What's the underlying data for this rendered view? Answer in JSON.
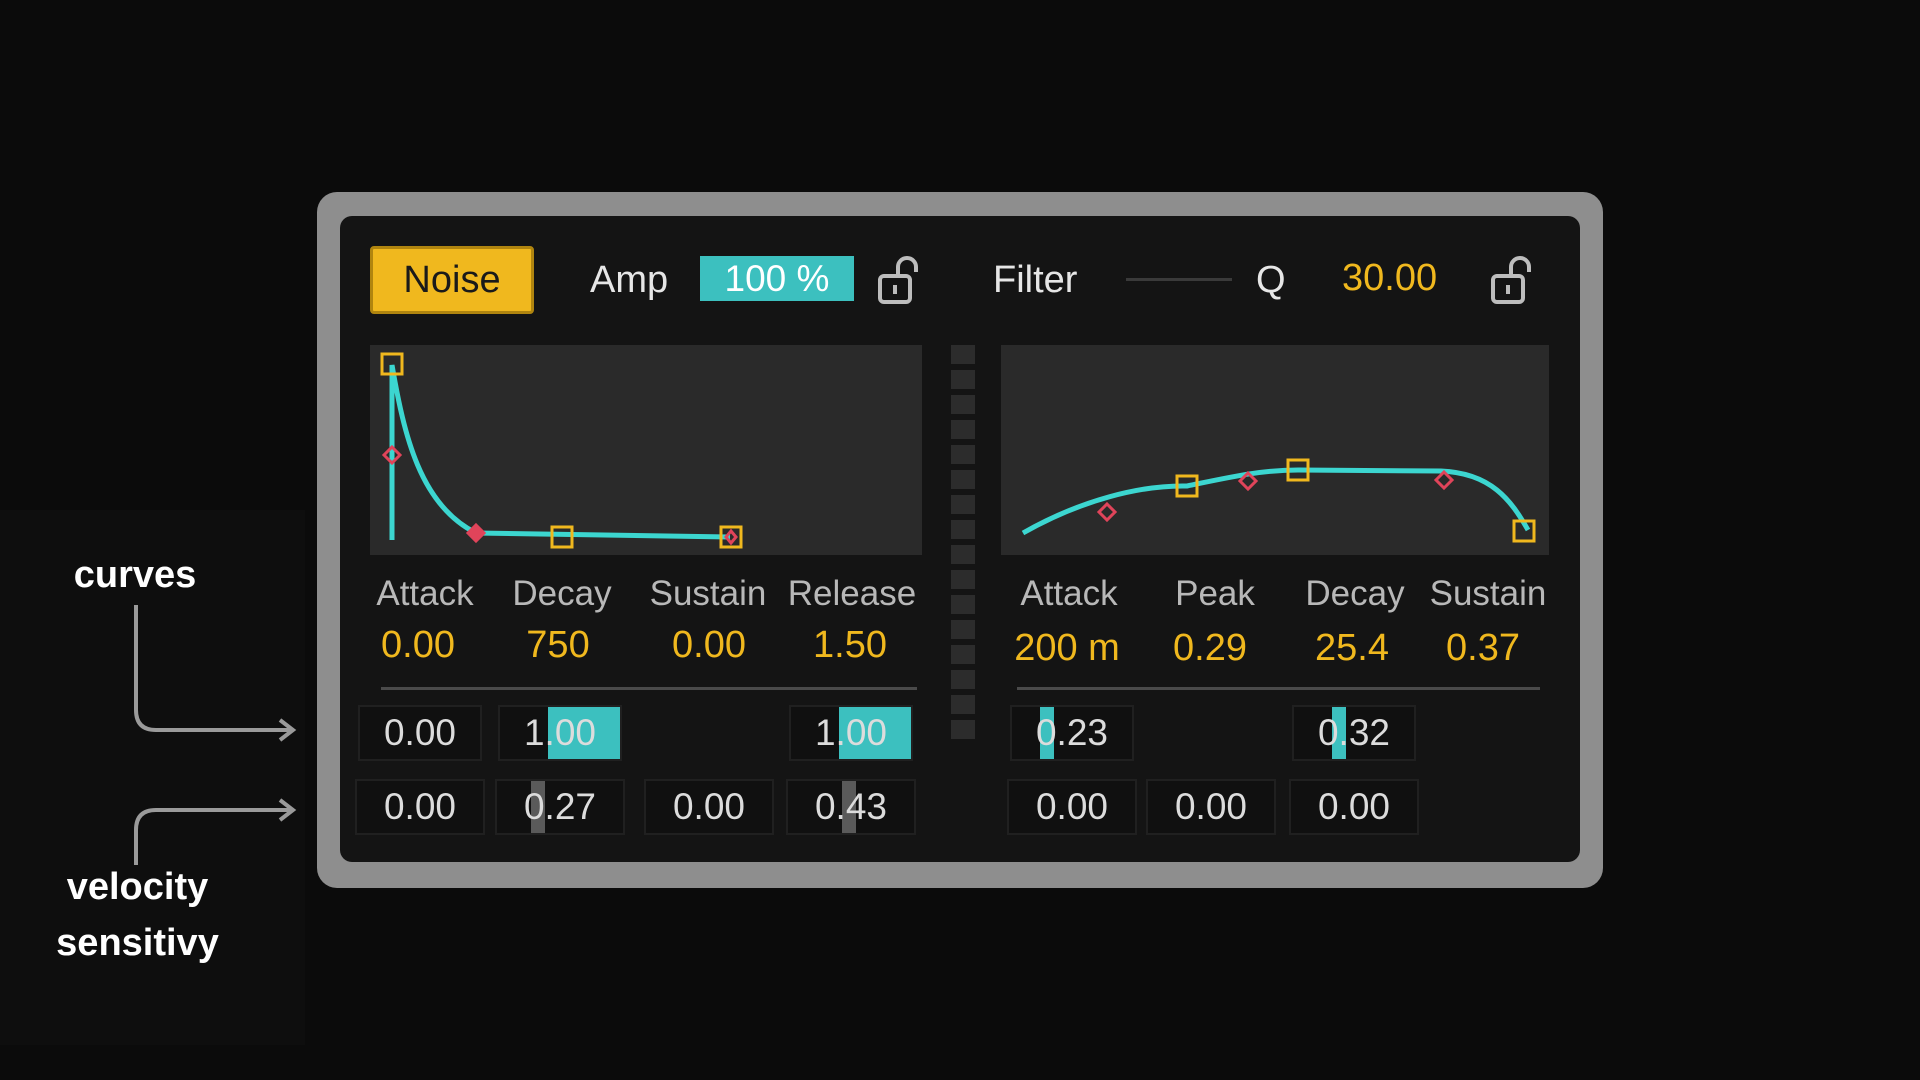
{
  "annotations": {
    "curves_label": "curves",
    "velocity_label_line1": "velocity",
    "velocity_label_line2": "sensitivy"
  },
  "header": {
    "noise_button": "Noise",
    "amp_label": "Amp",
    "amp_value": "100 %",
    "filter_label": "Filter",
    "q_label": "Q",
    "q_value": "30.00"
  },
  "amp_envelope": {
    "labels": [
      "Attack",
      "Decay",
      "Sustain",
      "Release"
    ],
    "values": [
      "0.00",
      "750",
      "0.00",
      "1.50"
    ],
    "curves": [
      {
        "value": "0.00",
        "fill_fraction": 0
      },
      {
        "value": "1.00",
        "fill_fraction": 1
      },
      null,
      {
        "value": "1.00",
        "fill_fraction": 1
      }
    ],
    "velocity": [
      {
        "value": "0.00",
        "fill_fraction": 0
      },
      {
        "value": "0.27",
        "fill_fraction": 0.27
      },
      {
        "value": "0.00",
        "fill_fraction": 0
      },
      {
        "value": "0.43",
        "fill_fraction": 0.43
      }
    ]
  },
  "filter_envelope": {
    "labels": [
      "Attack",
      "Peak",
      "Decay",
      "Sustain"
    ],
    "values": [
      "200 m",
      "0.29",
      "25.4",
      "0.37"
    ],
    "curves": [
      {
        "value": "0.23",
        "fill_fraction": 0.23
      },
      null,
      {
        "value": "0.32",
        "fill_fraction": 0.32
      },
      null
    ],
    "velocity": [
      {
        "value": "0.00",
        "fill_fraction": 0
      },
      {
        "value": "0.00",
        "fill_fraction": 0
      },
      {
        "value": "0.00",
        "fill_fraction": 0
      },
      null
    ]
  },
  "colors": {
    "accent_yellow": "#f0b81e",
    "accent_teal": "#3cc0bf",
    "breakpoint_red": "#e0445a",
    "frame_gray": "#8e8e8e",
    "background": "#0b0b0b"
  },
  "icons": [
    "lock-open-icon",
    "lock-open-icon"
  ]
}
